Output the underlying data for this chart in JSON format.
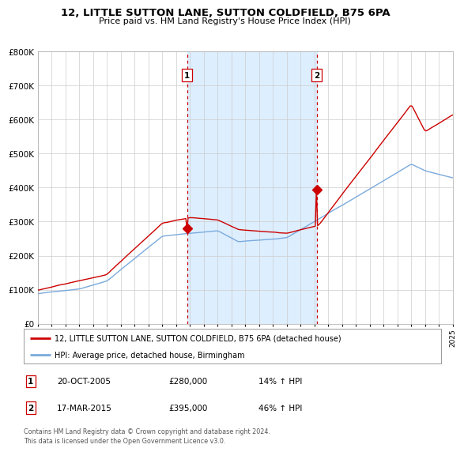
{
  "title": "12, LITTLE SUTTON LANE, SUTTON COLDFIELD, B75 6PA",
  "subtitle": "Price paid vs. HM Land Registry's House Price Index (HPI)",
  "legend_line1": "12, LITTLE SUTTON LANE, SUTTON COLDFIELD, B75 6PA (detached house)",
  "legend_line2": "HPI: Average price, detached house, Birmingham",
  "transaction1_date": "20-OCT-2005",
  "transaction1_price": 280000,
  "transaction1_hpi": "14% ↑ HPI",
  "transaction2_date": "17-MAR-2015",
  "transaction2_price": 395000,
  "transaction2_hpi": "46% ↑ HPI",
  "footnote": "Contains HM Land Registry data © Crown copyright and database right 2024.\nThis data is licensed under the Open Government Licence v3.0.",
  "red_color": "#cc0000",
  "blue_color": "#7aaadd",
  "bg_color": "#ffffff",
  "plot_bg": "#ffffff",
  "shade_color": "#ddeeff",
  "grid_color": "#cccccc",
  "vline_color": "#cc0000",
  "ylim": [
    0,
    800000
  ],
  "start_year": 1995,
  "end_year": 2025,
  "t1_year": 2005.79,
  "t2_year": 2015.17,
  "t1_price": 280000,
  "t2_price": 395000
}
